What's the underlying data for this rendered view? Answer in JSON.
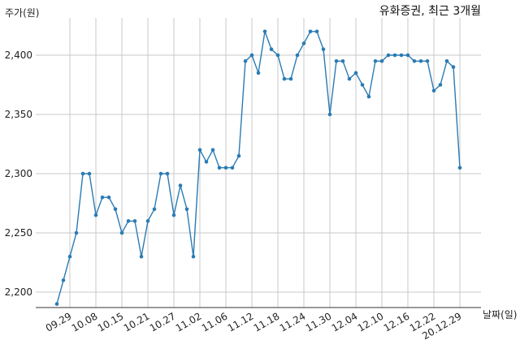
{
  "chart_data": {
    "type": "line",
    "title": "유화증권, 최근 3개월",
    "xlabel": "날짜(일)",
    "ylabel": "주가(원)",
    "ylim": [
      2180,
      2440
    ],
    "y_ticks": [
      2200,
      2250,
      2300,
      2350,
      2400
    ],
    "y_tick_labels": [
      "2,200",
      "2,250",
      "2,300",
      "2,350",
      "2,400"
    ],
    "x_tick_labels": [
      "09.29",
      "10.08",
      "10.15",
      "10.21",
      "10.27",
      "11.02",
      "11.06",
      "11.12",
      "11.18",
      "11.24",
      "11.30",
      "12.04",
      "12.10",
      "12.16",
      "12.22",
      "20.12.29"
    ],
    "x_tick_positions": [
      2,
      6,
      10,
      14,
      18,
      22,
      26,
      30,
      34,
      38,
      42,
      46,
      50,
      54,
      58,
      62
    ],
    "grid": true,
    "colors": {
      "series": "#2b7bb3",
      "grid": "#c8c8c8"
    },
    "series": [
      {
        "values": [
          2190,
          2210,
          2230,
          2250,
          2300,
          2300,
          2265,
          2280,
          2280,
          2270,
          2250,
          2260,
          2260,
          2230,
          2260,
          2270,
          2300,
          2300,
          2265,
          2290,
          2270,
          2230,
          2320,
          2310,
          2320,
          2305,
          2305,
          2305,
          2315,
          2395,
          2400,
          2385,
          2420,
          2405,
          2400,
          2380,
          2380,
          2400,
          2410,
          2420,
          2420,
          2405,
          2350,
          2395,
          2395,
          2380,
          2385,
          2375,
          2365,
          2395,
          2395,
          2400,
          2400,
          2400,
          2400,
          2395,
          2395,
          2395,
          2370,
          2375,
          2395,
          2390,
          2305
        ]
      }
    ]
  }
}
